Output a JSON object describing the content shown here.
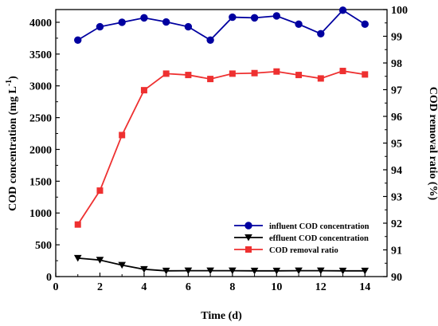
{
  "chart_data": {
    "type": "line",
    "xlabel": "Time (d)",
    "ylabel_left": "COD concentration (mg L",
    "ylabel_left_sup": "-1",
    "ylabel_left_end": ")",
    "ylabel_right": "COD removal ratio (%)",
    "xlim": [
      0,
      15
    ],
    "ylim_left": [
      0,
      4200
    ],
    "ylim_right": [
      90,
      100
    ],
    "x_ticks": [
      0,
      2,
      4,
      6,
      8,
      10,
      12,
      14
    ],
    "y_ticks_left": [
      0,
      500,
      1000,
      1500,
      2000,
      2500,
      3000,
      3500,
      4000
    ],
    "y_ticks_right": [
      90,
      91,
      92,
      93,
      94,
      95,
      96,
      97,
      98,
      99,
      100
    ],
    "grid": false,
    "legend_position": "bottom-right",
    "x": [
      1,
      2,
      3,
      4,
      5,
      6,
      7,
      8,
      9,
      10,
      11,
      12,
      13,
      14
    ],
    "series": [
      {
        "name": "influent COD  concentration",
        "axis": "left",
        "color": "#0000a0",
        "marker": "circle",
        "values": [
          3720,
          3930,
          4000,
          4070,
          4005,
          3930,
          3720,
          4080,
          4070,
          4100,
          3970,
          3820,
          4190,
          3970
        ]
      },
      {
        "name": "effluent COD  concentration",
        "axis": "left",
        "color": "#000000",
        "marker": "triangle-down",
        "values": [
          290,
          260,
          180,
          115,
          90,
          92,
          92,
          92,
          90,
          90,
          92,
          92,
          90,
          90
        ]
      },
      {
        "name": "COD removal ratio",
        "axis": "right",
        "color": "#ee3030",
        "marker": "square",
        "values": [
          91.95,
          93.22,
          95.3,
          96.98,
          97.6,
          97.55,
          97.4,
          97.6,
          97.62,
          97.68,
          97.55,
          97.42,
          97.7,
          97.57
        ]
      }
    ]
  }
}
